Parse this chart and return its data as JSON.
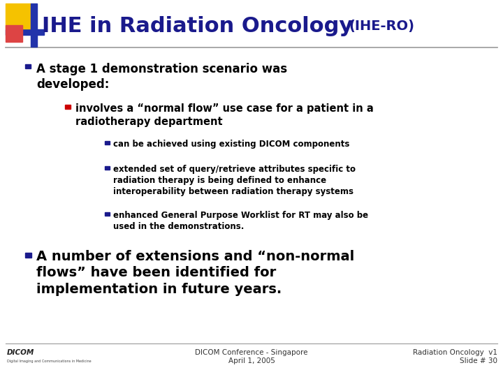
{
  "title_main": "IHE in Radiation Oncology",
  "title_sub": "(IHE-RO)",
  "title_color": "#1a1a8c",
  "title_fontsize": 22,
  "title_sub_fontsize": 14,
  "bg_color": "#ffffff",
  "bullet1_text": "A stage 1 demonstration scenario was\ndeveloped:",
  "sub_bullet1_text": "involves a “normal flow” use case for a patient in a\nradiotherapy department",
  "sub_bullet1_marker_color": "#cc0000",
  "sub_sub_bullets": [
    "can be achieved using existing DICOM components",
    "extended set of query/retrieve attributes specific to\nradiation therapy is being defined to enhance\ninteroperability between radiation therapy systems",
    "enhanced General Purpose Worklist for RT may also be\nused in the demonstrations."
  ],
  "sub_sub_bullet_marker_color": "#1a1a8c",
  "bullet2_text": "A number of extensions and “non-normal\nflows” have been identified for\nimplementation in future years.",
  "bullet1_marker_color": "#1a1a8c",
  "bullet2_marker_color": "#1a1a8c",
  "footer_center": "DICOM Conference - Singapore\nApril 1, 2005",
  "footer_right": "Radiation Oncology  v1\nSlide # 30",
  "footer_color": "#333333",
  "footer_fontsize": 7.5,
  "header_logo_yellow": "#f5c200",
  "header_logo_red": "#dd4444",
  "header_logo_blue": "#2233aa",
  "separator_color": "#999999",
  "body_text_color": "#000000"
}
